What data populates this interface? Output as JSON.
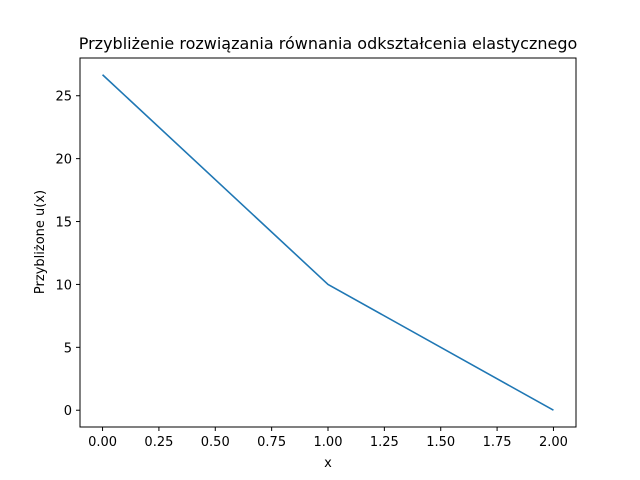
{
  "chart_data": {
    "type": "line",
    "title": "Przybliżenie rozwiązania równania odkształcenia elastycznego",
    "xlabel": "x",
    "ylabel": "Przybliżone u(x)",
    "xlim": [
      -0.1,
      2.1
    ],
    "ylim": [
      -1.3333,
      28.0
    ],
    "xticks": [
      0.0,
      0.25,
      0.5,
      0.75,
      1.0,
      1.25,
      1.5,
      1.75,
      2.0
    ],
    "xtick_labels": [
      "0.00",
      "0.25",
      "0.50",
      "0.75",
      "1.00",
      "1.25",
      "1.50",
      "1.75",
      "2.00"
    ],
    "yticks": [
      0,
      5,
      10,
      15,
      20,
      25
    ],
    "ytick_labels": [
      "0",
      "5",
      "10",
      "15",
      "20",
      "25"
    ],
    "grid": false,
    "series": [
      {
        "color": "#1f77b4",
        "x": [
          0.0,
          1.0,
          2.0
        ],
        "y": [
          26.6667,
          10.0,
          0.0
        ]
      }
    ]
  }
}
